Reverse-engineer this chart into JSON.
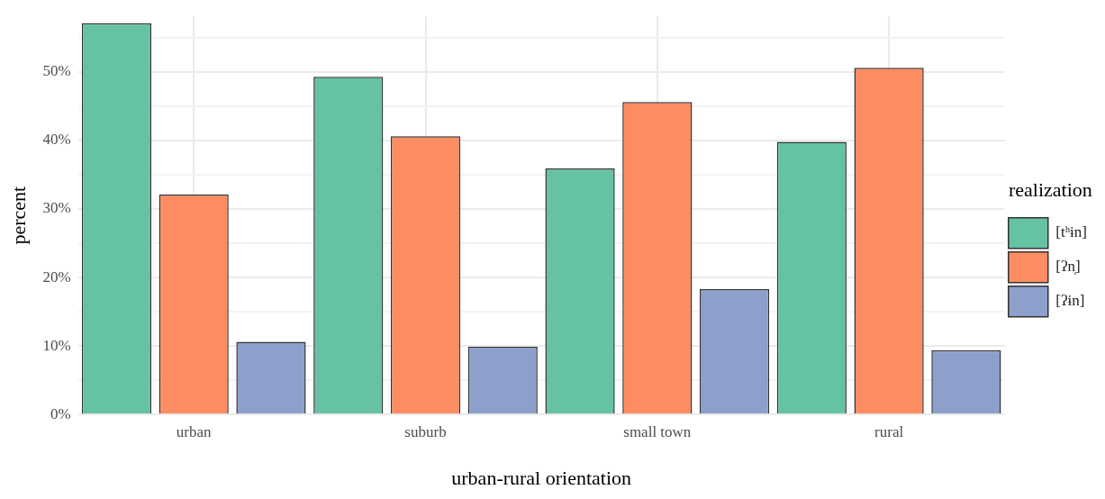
{
  "chart_data": {
    "type": "bar",
    "xlabel": "urban-rural orientation",
    "ylabel": "percent",
    "legend_title": "realization",
    "categories": [
      "urban",
      "suburb",
      "small town",
      "rural"
    ],
    "series": [
      {
        "name": "[tʰɨn]",
        "color": "#66c2a5",
        "values": [
          57.1,
          49.3,
          35.9,
          39.8
        ]
      },
      {
        "name": "[ʔn̩]",
        "color": "#fc8d62",
        "values": [
          32.1,
          40.6,
          45.6,
          50.6
        ]
      },
      {
        "name": "[ʔɨn]",
        "color": "#8da0cb",
        "values": [
          10.6,
          9.9,
          18.3,
          9.4
        ]
      }
    ],
    "ylim": [
      0,
      58.1
    ],
    "yticks": [
      {
        "value": 0,
        "label": "0%"
      },
      {
        "value": 5,
        "label": null
      },
      {
        "value": 10,
        "label": "10%"
      },
      {
        "value": 15,
        "label": null
      },
      {
        "value": 20,
        "label": "20%"
      },
      {
        "value": 25,
        "label": null
      },
      {
        "value": 30,
        "label": "30%"
      },
      {
        "value": 35,
        "label": null
      },
      {
        "value": 40,
        "label": "40%"
      },
      {
        "value": 45,
        "label": null
      },
      {
        "value": 50,
        "label": "50%"
      },
      {
        "value": 55,
        "label": null
      }
    ],
    "grid": true,
    "legend": "right"
  }
}
